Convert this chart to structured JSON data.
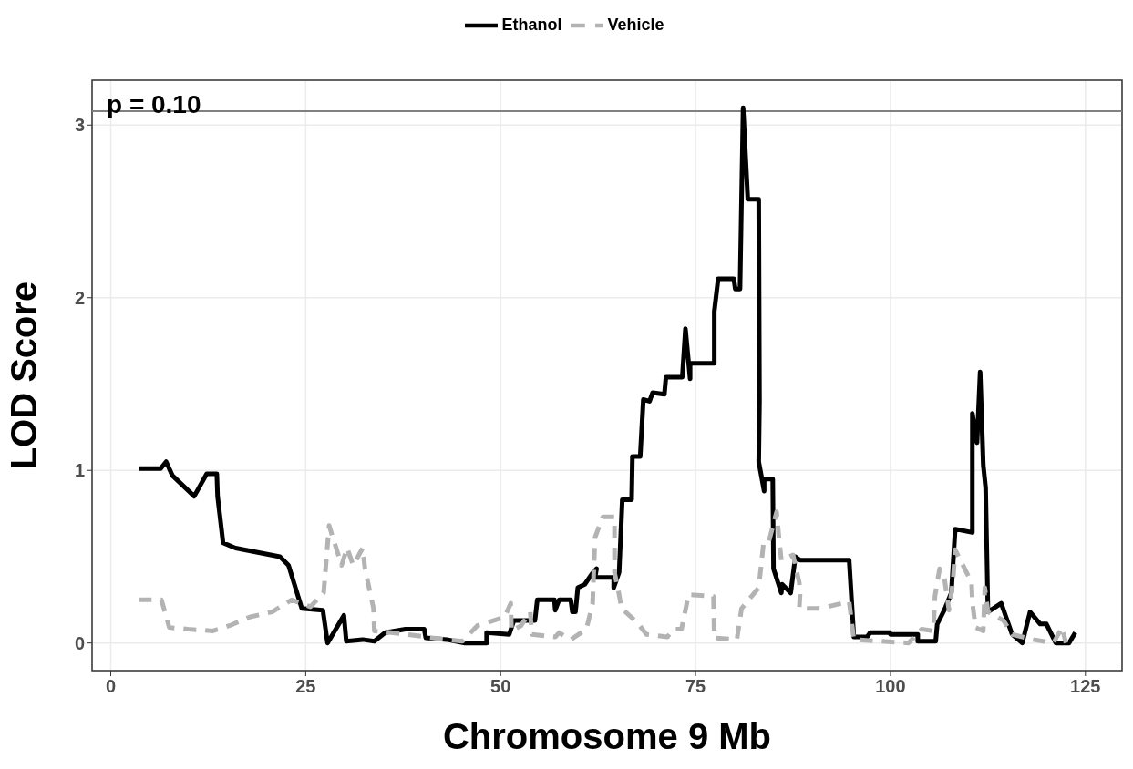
{
  "chart_data": {
    "type": "line",
    "xlabel": "Chromosome 9 Mb",
    "ylabel": "LOD Score",
    "legend": "top",
    "grid": true,
    "line_style": "solid",
    "marker": "none",
    "xlim": [
      -2.4,
      129.7
    ],
    "xticks": [
      0,
      25,
      50,
      75,
      100,
      125
    ],
    "ylim": [
      -0.16,
      3.26
    ],
    "yticks": [
      0,
      1,
      2,
      3
    ],
    "ref_lines": [
      {
        "axis": "y",
        "value": 3.08,
        "color": "#808080"
      }
    ],
    "annotations": [
      "p = 0.10"
    ],
    "series": [
      {
        "name": "Ethanol",
        "color": "#000000",
        "x": [
          3.6,
          6.4,
          7.1,
          7.9,
          10.7,
          12.3,
          13.6,
          13.7,
          14.4,
          16.0,
          21.7,
          22.8,
          24.5,
          27.2,
          27.8,
          29.9,
          30.2,
          32.3,
          33.8,
          35.2,
          37.8,
          40.2,
          40.4,
          43.1,
          45.4,
          48.2,
          48.2,
          51.1,
          51.7,
          54.4,
          54.7,
          56.9,
          57.0,
          57.5,
          59.0,
          59.2,
          59.6,
          59.9,
          60.8,
          61.7,
          62.3,
          62.1,
          64.5,
          64.5,
          65.2,
          65.6,
          66.8,
          66.9,
          67.9,
          68.3,
          69.1,
          69.5,
          71.0,
          71.2,
          73.3,
          73.7,
          74.3,
          74.3,
          77.4,
          77.4,
          77.9,
          79.9,
          80.1,
          80.7,
          81.1,
          81.7,
          83.1,
          83.2,
          83.1,
          83.8,
          83.8,
          84.9,
          85.0,
          86.0,
          86.1,
          87.2,
          87.8,
          88.4,
          94.7,
          95.3,
          97.0,
          97.4,
          99.9,
          100.0,
          103.5,
          103.5,
          105.8,
          106.0,
          106.9,
          107.8,
          108.3,
          110.5,
          110.5,
          111.1,
          111.5,
          111.9,
          112.2,
          112.5,
          114.2,
          115.6,
          116.9,
          117.9,
          119.2,
          120.0,
          121.2,
          122.9,
          123.7
        ],
        "values": [
          1.01,
          1.01,
          1.05,
          0.97,
          0.85,
          0.98,
          0.98,
          0.85,
          0.58,
          0.55,
          0.5,
          0.45,
          0.2,
          0.19,
          0.0,
          0.16,
          0.01,
          0.02,
          0.01,
          0.06,
          0.08,
          0.08,
          0.03,
          0.02,
          0.0,
          0.0,
          0.06,
          0.05,
          0.13,
          0.13,
          0.25,
          0.25,
          0.19,
          0.25,
          0.25,
          0.18,
          0.18,
          0.32,
          0.34,
          0.4,
          0.43,
          0.38,
          0.38,
          0.32,
          0.41,
          0.83,
          0.83,
          1.08,
          1.08,
          1.41,
          1.4,
          1.45,
          1.44,
          1.54,
          1.54,
          1.82,
          1.53,
          1.62,
          1.62,
          1.92,
          2.11,
          2.11,
          2.05,
          2.05,
          3.1,
          2.57,
          2.57,
          1.4,
          1.05,
          0.88,
          0.95,
          0.95,
          0.43,
          0.29,
          0.34,
          0.29,
          0.5,
          0.48,
          0.48,
          0.035,
          0.035,
          0.06,
          0.06,
          0.05,
          0.05,
          0.01,
          0.01,
          0.11,
          0.19,
          0.29,
          0.66,
          0.64,
          1.33,
          1.16,
          1.57,
          1.03,
          0.9,
          0.18,
          0.23,
          0.05,
          0.0,
          0.18,
          0.11,
          0.11,
          0.0,
          0.0,
          0.06
        ]
      },
      {
        "name": "Vehicle",
        "color": "#b3b3b3",
        "line_style": "dashed",
        "x": [
          3.6,
          6.5,
          7.5,
          9.9,
          13.1,
          15.2,
          17.8,
          20.7,
          23.2,
          25.6,
          27.3,
          28.0,
          29.6,
          30.3,
          31.1,
          32.3,
          32.6,
          33.7,
          33.8,
          38.0,
          41.2,
          45.1,
          47.0,
          50.5,
          51.3,
          51.4,
          52.6,
          53.8,
          54.0,
          57.0,
          57.5,
          59.0,
          61.0,
          61.8,
          62.1,
          63.1,
          64.6,
          64.6,
          65.2,
          65.5,
          67.5,
          68.7,
          71.4,
          72.1,
          73.2,
          74.1,
          77.3,
          77.4,
          80.3,
          80.9,
          83.1,
          83.7,
          84.3,
          85.4,
          85.7,
          86.0,
          87.5,
          88.3,
          88.4,
          88.3,
          91.0,
          94.7,
          95.3,
          102.3,
          104.0,
          105.5,
          105.7,
          106.3,
          106.9,
          107.5,
          108.0,
          108.3,
          110.4,
          110.5,
          110.9,
          111.9,
          112.1,
          112.5,
          114.5,
          115.6,
          118.3,
          120.9,
          122.0,
          122.5
        ],
        "values": [
          0.25,
          0.25,
          0.09,
          0.08,
          0.07,
          0.1,
          0.15,
          0.18,
          0.25,
          0.21,
          0.29,
          0.68,
          0.45,
          0.55,
          0.45,
          0.55,
          0.43,
          0.2,
          0.07,
          0.05,
          0.03,
          0.01,
          0.1,
          0.15,
          0.23,
          0.07,
          0.1,
          0.18,
          0.05,
          0.035,
          0.06,
          0.02,
          0.08,
          0.23,
          0.61,
          0.73,
          0.73,
          0.41,
          0.28,
          0.2,
          0.12,
          0.05,
          0.035,
          0.08,
          0.08,
          0.28,
          0.27,
          0.03,
          0.02,
          0.2,
          0.32,
          0.57,
          0.57,
          0.76,
          0.61,
          0.48,
          0.51,
          0.35,
          0.28,
          0.2,
          0.2,
          0.24,
          0.02,
          0.0,
          0.08,
          0.07,
          0.27,
          0.43,
          0.38,
          0.19,
          0.35,
          0.54,
          0.35,
          0.24,
          0.09,
          0.07,
          0.32,
          0.18,
          0.13,
          0.05,
          0.02,
          0.0,
          0.09,
          0.0
        ]
      }
    ]
  }
}
